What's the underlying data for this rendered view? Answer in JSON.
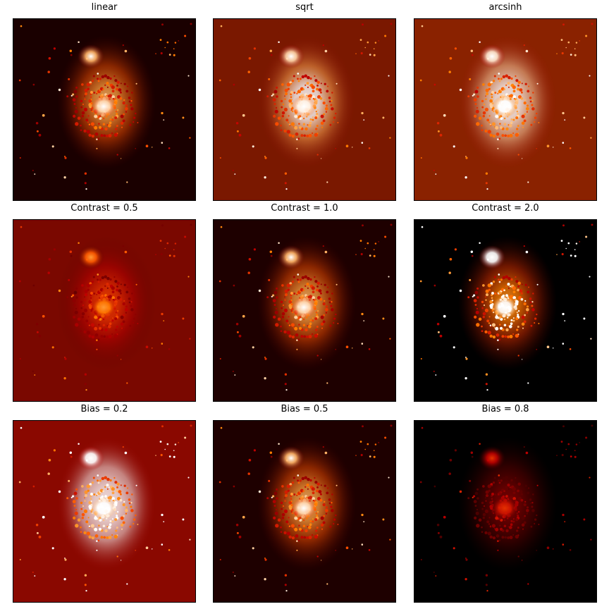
{
  "figure": {
    "background": "#ffffff",
    "colormap": "gist_heat",
    "subject": "spiral galaxy",
    "panels": [
      {
        "title": "linear",
        "bg": "#1a0000",
        "glow": 0.62,
        "gain": 1.0,
        "gamma": 1.0
      },
      {
        "title": "sqrt",
        "bg": "#7a1800",
        "glow": 0.78,
        "gain": 1.05,
        "gamma": 0.8
      },
      {
        "title": "arcsinh",
        "bg": "#8a2200",
        "glow": 0.85,
        "gain": 1.1,
        "gamma": 0.7
      },
      {
        "title": "Contrast = 0.5",
        "bg": "#7a0800",
        "glow": 0.55,
        "gain": 0.8,
        "gamma": 1.0
      },
      {
        "title": "Contrast = 1.0",
        "bg": "#1e0000",
        "glow": 0.62,
        "gain": 1.0,
        "gamma": 1.0
      },
      {
        "title": "Contrast = 2.0",
        "bg": "#000000",
        "glow": 0.35,
        "gain": 1.4,
        "gamma": 1.3
      },
      {
        "title": "Bias = 0.2",
        "bg": "#8a0800",
        "glow": 0.85,
        "gain": 1.35,
        "gamma": 0.8
      },
      {
        "title": "Bias = 0.5",
        "bg": "#1e0000",
        "glow": 0.62,
        "gain": 1.0,
        "gamma": 1.0
      },
      {
        "title": "Bias = 0.8",
        "bg": "#000000",
        "glow": 0.4,
        "gain": 0.65,
        "gamma": 1.2
      }
    ]
  }
}
